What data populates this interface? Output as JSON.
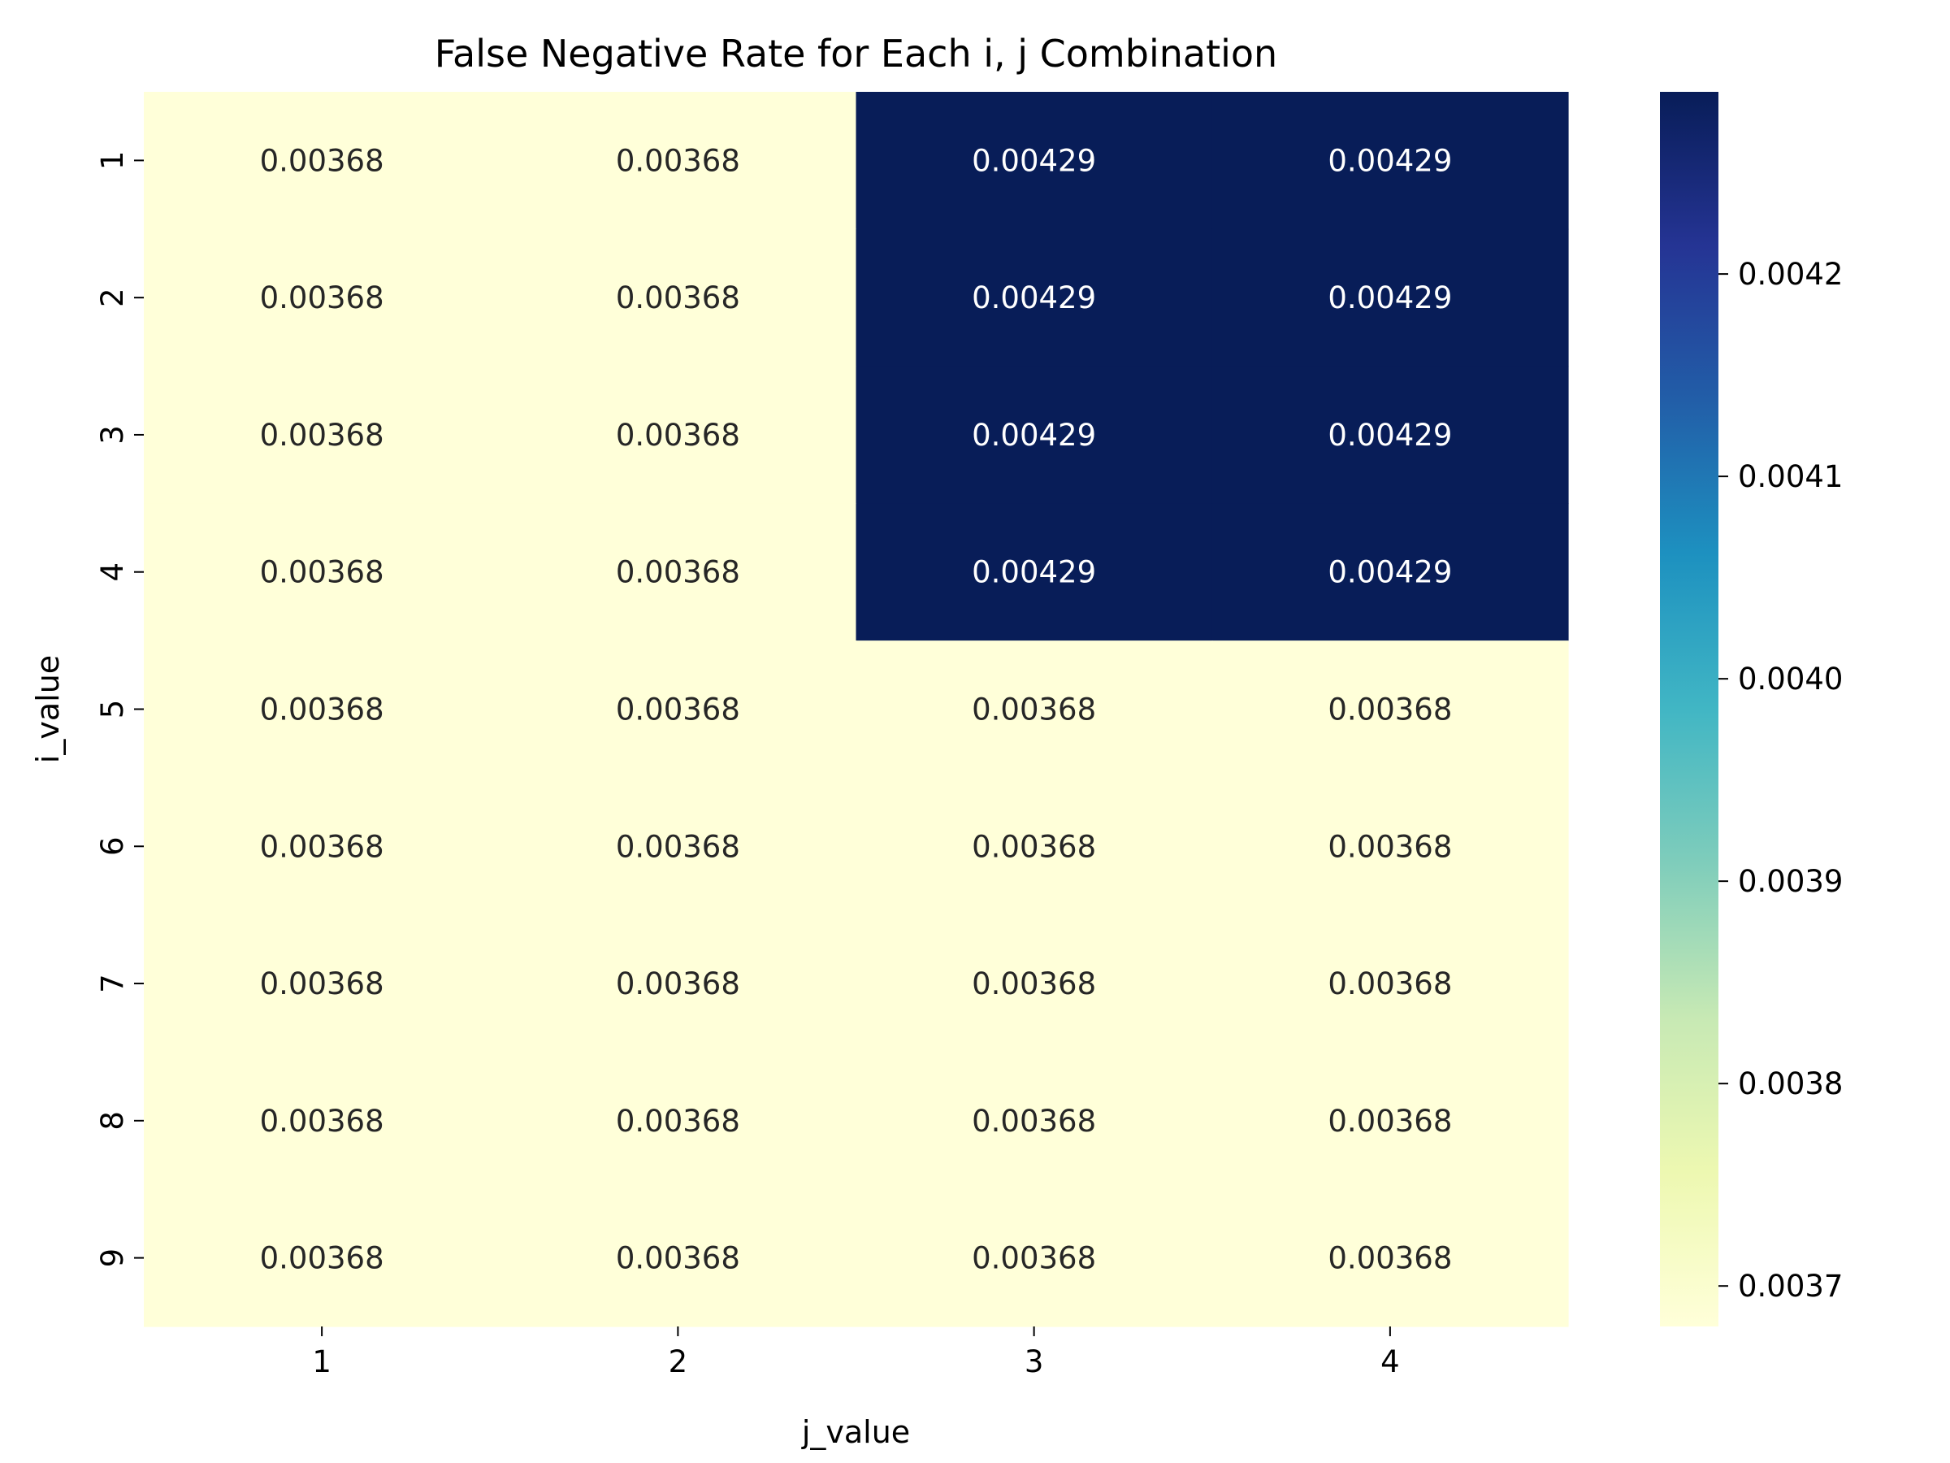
{
  "chart_data": {
    "type": "heatmap",
    "title": "False Negative Rate for Each i, j Combination",
    "xlabel": "j_value",
    "ylabel": "i_value",
    "x_categories": [
      "1",
      "2",
      "3",
      "4"
    ],
    "y_categories": [
      "1",
      "2",
      "3",
      "4",
      "5",
      "6",
      "7",
      "8",
      "9"
    ],
    "values": [
      [
        0.00368,
        0.00368,
        0.00429,
        0.00429
      ],
      [
        0.00368,
        0.00368,
        0.00429,
        0.00429
      ],
      [
        0.00368,
        0.00368,
        0.00429,
        0.00429
      ],
      [
        0.00368,
        0.00368,
        0.00429,
        0.00429
      ],
      [
        0.00368,
        0.00368,
        0.00368,
        0.00368
      ],
      [
        0.00368,
        0.00368,
        0.00368,
        0.00368
      ],
      [
        0.00368,
        0.00368,
        0.00368,
        0.00368
      ],
      [
        0.00368,
        0.00368,
        0.00368,
        0.00368
      ],
      [
        0.00368,
        0.00368,
        0.00368,
        0.00368
      ]
    ],
    "cell_labels": [
      [
        "0.00368",
        "0.00368",
        "0.00429",
        "0.00429"
      ],
      [
        "0.00368",
        "0.00368",
        "0.00429",
        "0.00429"
      ],
      [
        "0.00368",
        "0.00368",
        "0.00429",
        "0.00429"
      ],
      [
        "0.00368",
        "0.00368",
        "0.00429",
        "0.00429"
      ],
      [
        "0.00368",
        "0.00368",
        "0.00368",
        "0.00368"
      ],
      [
        "0.00368",
        "0.00368",
        "0.00368",
        "0.00368"
      ],
      [
        "0.00368",
        "0.00368",
        "0.00368",
        "0.00368"
      ],
      [
        "0.00368",
        "0.00368",
        "0.00368",
        "0.00368"
      ],
      [
        "0.00368",
        "0.00368",
        "0.00368",
        "0.00368"
      ]
    ],
    "colorbar": {
      "min": 0.00368,
      "max": 0.00429,
      "ticks": [
        0.0037,
        0.0038,
        0.0039,
        0.004,
        0.0041,
        0.0042
      ],
      "tick_labels": [
        "0.0037",
        "0.0038",
        "0.0039",
        "0.0040",
        "0.0041",
        "0.0042"
      ],
      "colormap": "YlGnBu"
    },
    "grid": false,
    "legend": "colorbar-right"
  }
}
